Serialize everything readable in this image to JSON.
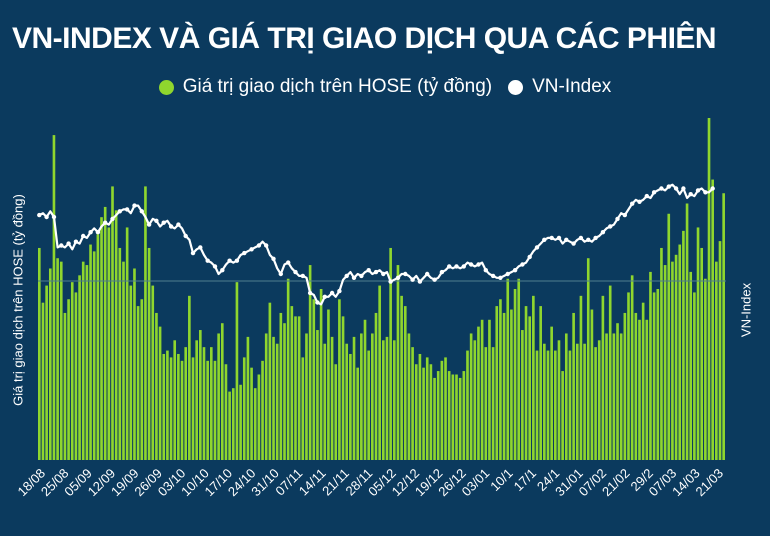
{
  "title": "VN-INDEX VÀ GIÁ TRỊ GIAO DỊCH QUA CÁC PHIÊN",
  "colors": {
    "background": "#0b3a5e",
    "bar": "#8fd62e",
    "line": "#ffffff"
  },
  "chart_data": {
    "type": "bar",
    "legend_placement": "top",
    "grid": false,
    "series": [
      {
        "name": "Giá trị giao dịch trên HOSE (tỷ đồng)",
        "kind": "bar",
        "axis": "left",
        "values": [
          0.62,
          0.46,
          0.51,
          0.56,
          0.95,
          0.59,
          0.58,
          0.43,
          0.47,
          0.52,
          0.49,
          0.54,
          0.58,
          0.57,
          0.63,
          0.61,
          0.66,
          0.71,
          0.74,
          0.68,
          0.8,
          0.73,
          0.62,
          0.58,
          0.68,
          0.51,
          0.56,
          0.45,
          0.47,
          0.8,
          0.62,
          0.51,
          0.43,
          0.39,
          0.31,
          0.32,
          0.3,
          0.35,
          0.31,
          0.29,
          0.33,
          0.48,
          0.3,
          0.35,
          0.38,
          0.33,
          0.29,
          0.33,
          0.29,
          0.37,
          0.4,
          0.28,
          0.2,
          0.21,
          0.52,
          0.22,
          0.3,
          0.36,
          0.27,
          0.21,
          0.25,
          0.29,
          0.37,
          0.46,
          0.36,
          0.34,
          0.43,
          0.4,
          0.53,
          0.45,
          0.42,
          0.42,
          0.3,
          0.37,
          0.57,
          0.47,
          0.38,
          0.5,
          0.34,
          0.44,
          0.36,
          0.28,
          0.47,
          0.42,
          0.34,
          0.31,
          0.36,
          0.27,
          0.37,
          0.41,
          0.32,
          0.37,
          0.43,
          0.51,
          0.35,
          0.36,
          0.62,
          0.35,
          0.57,
          0.48,
          0.45,
          0.37,
          0.33,
          0.28,
          0.31,
          0.27,
          0.3,
          0.28,
          0.24,
          0.26,
          0.29,
          0.3,
          0.26,
          0.25,
          0.25,
          0.24,
          0.26,
          0.32,
          0.37,
          0.35,
          0.39,
          0.41,
          0.33,
          0.41,
          0.33,
          0.45,
          0.47,
          0.43,
          0.53,
          0.44,
          0.5,
          0.53,
          0.38,
          0.45,
          0.42,
          0.48,
          0.32,
          0.45,
          0.34,
          0.32,
          0.39,
          0.32,
          0.35,
          0.26,
          0.37,
          0.32,
          0.43,
          0.34,
          0.48,
          0.34,
          0.59,
          0.44,
          0.33,
          0.35,
          0.48,
          0.37,
          0.51,
          0.37,
          0.4,
          0.37,
          0.43,
          0.49,
          0.54,
          0.43,
          0.41,
          0.46,
          0.41,
          0.55,
          0.49,
          0.5,
          0.62,
          0.57,
          0.72,
          0.58,
          0.6,
          0.63,
          0.67,
          0.75,
          0.55,
          0.49,
          0.68,
          0.62,
          0.53,
          1.0,
          0.82,
          0.58,
          0.64,
          0.78
        ],
        "unit": "tỷ đồng (relative)"
      },
      {
        "name": "VN-Index",
        "kind": "line",
        "axis": "right",
        "values": [
          0.71,
          0.72,
          0.7,
          0.73,
          0.7,
          0.54,
          0.55,
          0.54,
          0.56,
          0.53,
          0.57,
          0.56,
          0.6,
          0.59,
          0.62,
          0.64,
          0.62,
          0.65,
          0.67,
          0.66,
          0.69,
          0.71,
          0.73,
          0.74,
          0.74,
          0.72,
          0.76,
          0.76,
          0.73,
          0.7,
          0.66,
          0.69,
          0.68,
          0.65,
          0.67,
          0.68,
          0.65,
          0.64,
          0.66,
          0.64,
          0.6,
          0.58,
          0.51,
          0.53,
          0.54,
          0.5,
          0.47,
          0.46,
          0.44,
          0.4,
          0.42,
          0.45,
          0.47,
          0.46,
          0.47,
          0.5,
          0.51,
          0.52,
          0.53,
          0.54,
          0.55,
          0.57,
          0.55,
          0.5,
          0.48,
          0.43,
          0.4,
          0.45,
          0.46,
          0.43,
          0.41,
          0.39,
          0.39,
          0.38,
          0.3,
          0.29,
          0.25,
          0.24,
          0.28,
          0.28,
          0.3,
          0.28,
          0.31,
          0.37,
          0.39,
          0.41,
          0.38,
          0.4,
          0.39,
          0.41,
          0.42,
          0.4,
          0.41,
          0.42,
          0.4,
          0.41,
          0.36,
          0.37,
          0.38,
          0.4,
          0.4,
          0.39,
          0.37,
          0.39,
          0.36,
          0.38,
          0.4,
          0.38,
          0.37,
          0.38,
          0.41,
          0.42,
          0.44,
          0.43,
          0.44,
          0.43,
          0.44,
          0.46,
          0.45,
          0.44,
          0.45,
          0.46,
          0.42,
          0.4,
          0.39,
          0.38,
          0.38,
          0.39,
          0.4,
          0.41,
          0.42,
          0.44,
          0.45,
          0.46,
          0.49,
          0.52,
          0.54,
          0.56,
          0.58,
          0.59,
          0.59,
          0.58,
          0.59,
          0.56,
          0.58,
          0.57,
          0.56,
          0.58,
          0.59,
          0.57,
          0.58,
          0.57,
          0.59,
          0.6,
          0.62,
          0.64,
          0.65,
          0.66,
          0.69,
          0.72,
          0.71,
          0.74,
          0.77,
          0.79,
          0.78,
          0.79,
          0.81,
          0.8,
          0.83,
          0.84,
          0.85,
          0.84,
          0.86,
          0.87,
          0.85,
          0.82,
          0.85,
          0.8,
          0.82,
          0.81,
          0.84,
          0.85,
          0.83,
          0.83,
          0.85
        ]
      }
    ],
    "x_tick_labels": [
      "18/08",
      "25/08",
      "05/09",
      "12/09",
      "19/09",
      "26/09",
      "03/10",
      "10/10",
      "17/10",
      "24/10",
      "31/10",
      "07/11",
      "14/11",
      "21/11",
      "28/11",
      "05/12",
      "12/12",
      "19/12",
      "26/12",
      "03/01",
      "10/1",
      "17/1",
      "24/1",
      "31/01",
      "07/02",
      "21/02",
      "29/2",
      "07/03",
      "14/03",
      "21/03"
    ],
    "ylabel_left": "Giá trị giao dịch trên HOSE (tỷ đồng)",
    "ylabel_right": "VN-Index",
    "xlabel": ""
  }
}
